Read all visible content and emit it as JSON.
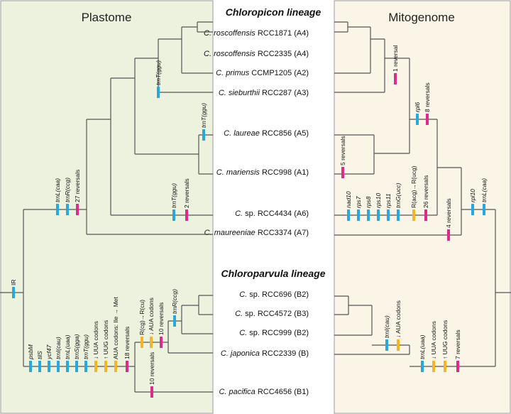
{
  "panels": {
    "left_title": "Plastome",
    "right_title": "Mitogenome",
    "lineage_top": "Chloropicon lineage",
    "lineage_bottom": "Chloroparvula lineage"
  },
  "colors": {
    "left_bg": "#edf2df",
    "right_bg": "#fbf5e7",
    "gene_gain": "#29a8e0",
    "codon_change": "#f5b526",
    "reversal": "#e02a8a",
    "branch": "#555555"
  },
  "taxa": [
    {
      "genus": "C. roscoffensis",
      "strain": " RCC1871 (A4)"
    },
    {
      "genus": "C. roscoffensis",
      "strain": " RCC2335 (A4)"
    },
    {
      "genus": "C. primus",
      "strain": " CCMP1205 (A2)"
    },
    {
      "genus": "C. sieburthii",
      "strain": " RCC287 (A3)"
    },
    {
      "genus": "C. laureae",
      "strain": " RCC856 (A5)"
    },
    {
      "genus": "C. mariensis",
      "strain": " RCC998 (A1)"
    },
    {
      "genus": "C.",
      "strain": " sp. RCC4434 (A6)"
    },
    {
      "genus": "C. maureeniae",
      "strain": " RCC3374 (A7)"
    },
    {
      "genus": "C.",
      "strain": " sp. RCC696 (B2)"
    },
    {
      "genus": "C.",
      "strain": " sp. RCC4572 (B3)"
    },
    {
      "genus": "C.",
      "strain": " sp. RCC999 (B2)"
    },
    {
      "genus": "C. japonica",
      "strain": " RCC2339 (B)"
    },
    {
      "genus": "C. pacifica",
      "strain": " RCC4656 (B1)"
    }
  ],
  "plastome_events": {
    "ir": "IR",
    "trnT_primus": "trnT(ggu)",
    "trnT_laureae": "trnT(ggu)",
    "trnL_caa": "trnL(caa)",
    "trnR_ccg": "trnR(ccg)",
    "rev27": "27 reversals",
    "trnT_4434": "trnT(ggu)",
    "rev2": "2 reversals",
    "psbM": "psbM",
    "tilS": "tilS",
    "ycf47": "ycf47",
    "trnI_cau": "trnI(cau)",
    "trnL_uaa": "trnL(uaa)",
    "trnS_gga": "trnS(gga)",
    "trnT_ggu_b": "trnT(ggu)",
    "uua": "↓ UUA codons",
    "uug": "↑ UUG codons",
    "aua": "AUA codons: Ile → Met",
    "rev18": "18 reversals",
    "rcg": "R(cg)→R(cu)",
    "aua_down": "↓ AUA codons",
    "rev10a": "10 reversals",
    "trnR_ccg_b": "trnR(ccg)",
    "rev10b": "10 reversals"
  },
  "mitogenome_events": {
    "rev1": "1 reversal",
    "rpl6": "rpl6",
    "rev8": "8 reversals",
    "rev5": "5 reversals",
    "nad10": "nad10",
    "rps7": "rps7",
    "rps8": "rps8",
    "rps10": "rps10",
    "rps11": "rps11",
    "trnG_ucc": "trnG(ucc)",
    "racg": "R(acg)→R(ucg)",
    "rev26": "26 reversals",
    "rev4": "4 reversals",
    "rpl10": "rpl10",
    "trnL_caa": "trnL(caa)",
    "trnI_cau": "trnI(cau)",
    "aua_down": "↓ AUA codons",
    "trnL_uaa": "trnL(uaa)",
    "uua": "↓ UUA codons",
    "uug": "↑ UUG codons",
    "rev7": "7 reversals"
  }
}
